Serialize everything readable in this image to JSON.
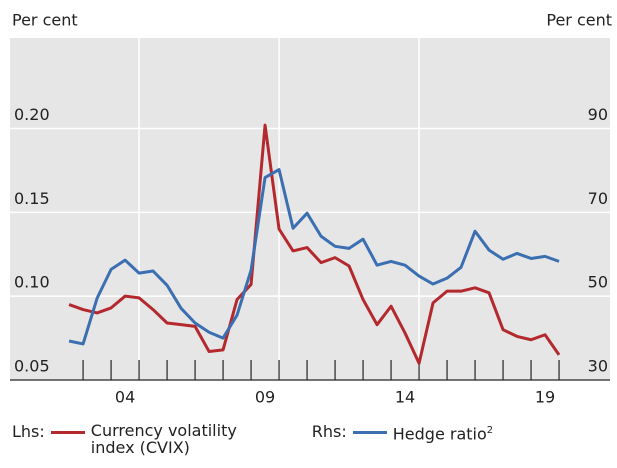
{
  "chart_data": {
    "type": "line",
    "y_label": "Per cent",
    "y2_label": "Per cent",
    "x": [
      2002.5,
      2003,
      2003.5,
      2004,
      2004.5,
      2005,
      2005.5,
      2006,
      2006.5,
      2007,
      2007.5,
      2008,
      2008.5,
      2009,
      2009.5,
      2010,
      2010.5,
      2011,
      2011.5,
      2012,
      2012.5,
      2013,
      2013.5,
      2014,
      2014.5,
      2015,
      2015.5,
      2016,
      2016.5,
      2017,
      2017.5,
      2018,
      2018.5,
      2019,
      2019.5,
      2020
    ],
    "series": [
      {
        "name": "Currency volatility index (CVIX)",
        "legend_prefix": "Lhs:",
        "color": "#b3292e",
        "axis": "y",
        "values": [
          0.095,
          0.092,
          0.09,
          0.093,
          0.1,
          0.099,
          0.092,
          0.084,
          0.083,
          0.082,
          0.067,
          0.068,
          0.098,
          0.107,
          0.202,
          0.14,
          0.127,
          0.129,
          0.12,
          0.123,
          0.118,
          0.098,
          0.083,
          0.094,
          0.078,
          0.06,
          0.096,
          0.103,
          0.103,
          0.105,
          0.102,
          0.08,
          0.076,
          0.074,
          0.077,
          0.065
        ]
      },
      {
        "name": "Hedge ratio",
        "footnote": "2",
        "legend_prefix": "Rhs:",
        "color": "#3b6fb1",
        "axis": "y2",
        "values": [
          39.3,
          38.6,
          49.5,
          56.4,
          58.6,
          55.5,
          56.0,
          52.6,
          47.1,
          43.6,
          41.4,
          40.0,
          45.5,
          56.2,
          78.3,
          80.2,
          66.2,
          69.8,
          64.3,
          61.9,
          61.4,
          63.6,
          57.4,
          58.3,
          57.4,
          54.8,
          52.9,
          54.3,
          56.9,
          65.5,
          61.0,
          58.8,
          60.2,
          59.0,
          59.5,
          58.3
        ]
      }
    ],
    "xlim": [
      2000.39,
      2021.82
    ],
    "xticks": [
      {
        "value": 2004.5,
        "label": "04"
      },
      {
        "value": 2009.5,
        "label": "09"
      },
      {
        "value": 2014.5,
        "label": "14"
      },
      {
        "value": 2019.5,
        "label": "19"
      }
    ],
    "xminorticks": [
      2003,
      2004,
      2005,
      2006,
      2007,
      2008,
      2009,
      2010,
      2011,
      2012,
      2013,
      2014,
      2015,
      2016,
      2017,
      2018,
      2019,
      2020
    ],
    "xgrid": [
      2005,
      2010,
      2015
    ],
    "ylim": [
      0.05,
      0.254
    ],
    "yticks": [
      {
        "value": 0.05,
        "label": "0.05"
      },
      {
        "value": 0.1,
        "label": "0.10"
      },
      {
        "value": 0.15,
        "label": "0.15"
      },
      {
        "value": 0.2,
        "label": "0.20"
      }
    ],
    "y2lim": [
      30,
      111.6
    ],
    "y2ticks": [
      30,
      50,
      70,
      90
    ],
    "grid": true
  }
}
